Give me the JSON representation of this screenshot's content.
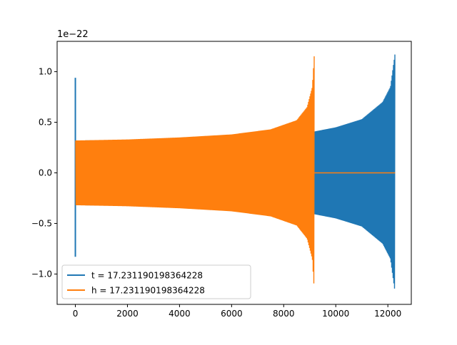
{
  "chart_data": {
    "type": "line",
    "title": "",
    "xlabel": "",
    "ylabel": "",
    "y_offset_label": "1e−22",
    "xlim": [
      -700,
      12900
    ],
    "ylim": [
      -1.3,
      1.3
    ],
    "x_ticks": [
      0,
      2000,
      4000,
      6000,
      8000,
      10000,
      12000
    ],
    "x_tick_labels": [
      "0",
      "2000",
      "4000",
      "6000",
      "8000",
      "10000",
      "12000"
    ],
    "y_ticks": [
      -1.0,
      -0.5,
      0.0,
      0.5,
      1.0
    ],
    "y_tick_labels": [
      "−1.0",
      "−0.5",
      "0.0",
      "0.5",
      "1.0"
    ],
    "grid": false,
    "legend_position": "lower-left",
    "series": [
      {
        "name": "t = 17.231190198364228",
        "color": "#1f77b4",
        "kind": "chirp",
        "start_x": 0,
        "end_x": 12280,
        "envelope": [
          [
            0,
            0.32
          ],
          [
            2000,
            0.325
          ],
          [
            4000,
            0.335
          ],
          [
            6000,
            0.36
          ],
          [
            8000,
            0.39
          ],
          [
            9200,
            0.41
          ],
          [
            10000,
            0.45
          ],
          [
            11000,
            0.53
          ],
          [
            11800,
            0.7
          ],
          [
            12100,
            0.85
          ],
          [
            12280,
            1.19
          ]
        ],
        "spikes": [
          {
            "x": 0,
            "min": -0.83,
            "max": 0.94
          }
        ],
        "flat_after": null
      },
      {
        "name": "h = 17.231190198364228",
        "color": "#ff7f0e",
        "kind": "chirp",
        "start_x": 0,
        "end_x": 9180,
        "envelope": [
          [
            0,
            0.32
          ],
          [
            2000,
            0.33
          ],
          [
            4000,
            0.35
          ],
          [
            6000,
            0.38
          ],
          [
            7500,
            0.43
          ],
          [
            8500,
            0.52
          ],
          [
            8900,
            0.65
          ],
          [
            9100,
            0.85
          ],
          [
            9180,
            1.19
          ]
        ],
        "spikes": [],
        "flat_after": {
          "from": 9180,
          "to": 12280,
          "value": 0.0
        }
      }
    ]
  }
}
